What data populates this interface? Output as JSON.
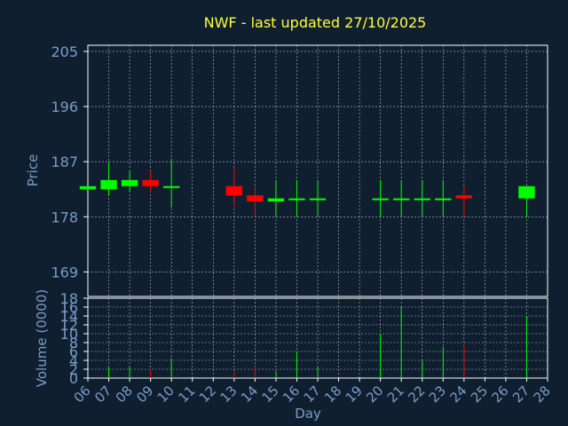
{
  "chart_data": [
    {
      "type": "candlestick",
      "title": "NWF - last updated 27/10/2025",
      "ylabel": "Price",
      "ylim": [
        165,
        206
      ],
      "yticks": [
        "205",
        "196",
        "187",
        "178",
        "169"
      ],
      "ytick_values": [
        205,
        196,
        187,
        178,
        169
      ],
      "grid": true,
      "up_color": "#00ff00",
      "down_color": "#ff0000",
      "candles": [
        {
          "day": "06",
          "open": 182.5,
          "close": 183.0,
          "high": 183.0,
          "low": 182.5
        },
        {
          "day": "07",
          "open": 182.5,
          "close": 184.0,
          "high": 187.0,
          "low": 181.5
        },
        {
          "day": "08",
          "open": 183.0,
          "close": 184.0,
          "high": 185.5,
          "low": 182.0
        },
        {
          "day": "09",
          "open": 184.0,
          "close": 183.0,
          "high": 185.5,
          "low": 182.0
        },
        {
          "day": "10",
          "open": 182.8,
          "close": 183.0,
          "high": 187.5,
          "low": 179.5
        },
        {
          "day": "13",
          "open": 183.0,
          "close": 181.5,
          "high": 186.0,
          "low": 179.5
        },
        {
          "day": "14",
          "open": 181.5,
          "close": 180.5,
          "high": 183.0,
          "low": 178.0
        },
        {
          "day": "15",
          "open": 180.5,
          "close": 181.0,
          "high": 184.0,
          "low": 178.0
        },
        {
          "day": "16",
          "open": 180.8,
          "close": 181.0,
          "high": 184.0,
          "low": 178.0
        },
        {
          "day": "17",
          "open": 180.8,
          "close": 181.0,
          "high": 184.0,
          "low": 178.0
        },
        {
          "day": "20",
          "open": 180.8,
          "close": 181.0,
          "high": 184.0,
          "low": 178.0
        },
        {
          "day": "21",
          "open": 180.8,
          "close": 181.0,
          "high": 184.0,
          "low": 178.0
        },
        {
          "day": "22",
          "open": 180.8,
          "close": 181.0,
          "high": 184.0,
          "low": 178.0
        },
        {
          "day": "23",
          "open": 180.8,
          "close": 181.0,
          "high": 184.0,
          "low": 178.0
        },
        {
          "day": "24",
          "open": 181.5,
          "close": 181.0,
          "high": 183.0,
          "low": 178.0
        },
        {
          "day": "27",
          "open": 181.0,
          "close": 183.0,
          "high": 183.0,
          "low": 178.0
        }
      ]
    },
    {
      "type": "bar",
      "ylabel": "Volume (0000)",
      "xlabel": "Day",
      "ylim": [
        0,
        18
      ],
      "yticks": [
        "18",
        "16",
        "14",
        "12",
        "10",
        "8",
        "6",
        "4",
        "2",
        "0"
      ],
      "ytick_values": [
        18,
        16,
        14,
        12,
        10,
        8,
        6,
        4,
        2,
        0
      ],
      "categories": [
        "06",
        "07",
        "08",
        "09",
        "10",
        "11",
        "12",
        "13",
        "14",
        "15",
        "16",
        "17",
        "18",
        "19",
        "20",
        "21",
        "22",
        "23",
        "24",
        "25",
        "26",
        "27",
        "28"
      ],
      "values": [
        0,
        2.5,
        2.5,
        2.0,
        4.5,
        0,
        0,
        1.5,
        3.0,
        1.5,
        6.0,
        2.5,
        0,
        0,
        10.0,
        16.0,
        4.0,
        7.0,
        7.5,
        0,
        0,
        14.0,
        0
      ],
      "bar_colors": [
        "#00ff00",
        "#00ff00",
        "#00ff00",
        "#ff0000",
        "#00ff00",
        "#00ff00",
        "#00ff00",
        "#ff0000",
        "#ff0000",
        "#00ff00",
        "#00ff00",
        "#00ff00",
        "#00ff00",
        "#00ff00",
        "#00ff00",
        "#00ff00",
        "#00ff00",
        "#00ff00",
        "#ff0000",
        "#00ff00",
        "#00ff00",
        "#00ff00",
        "#00ff00"
      ]
    }
  ],
  "colors": {
    "background": "#0f1f30",
    "axis": "#ffffff",
    "label": "#7a9cc6",
    "title": "#ffff33"
  }
}
